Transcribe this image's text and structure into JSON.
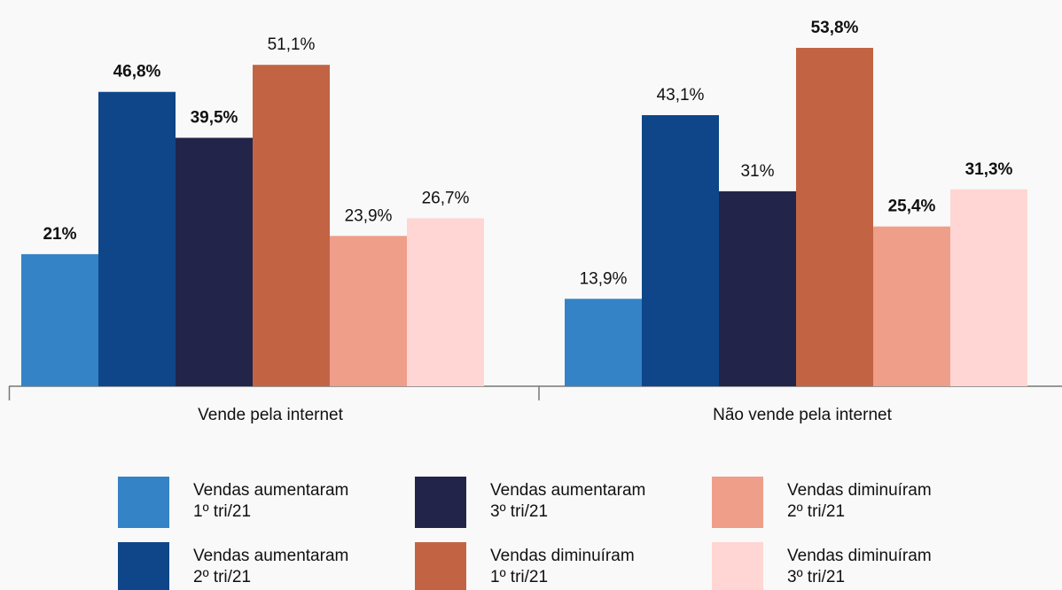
{
  "chart_data": {
    "type": "bar",
    "categories": [
      "Vende pela internet",
      "Não vende pela internet"
    ],
    "series": [
      {
        "name": "Vendas aumentaram 1º tri/21",
        "color": "#3483c6",
        "values": [
          21,
          13.9
        ],
        "value_labels": [
          "21%",
          "13,9%"
        ],
        "bold": [
          true,
          false
        ]
      },
      {
        "name": "Vendas aumentaram 2º tri/21",
        "color": "#0e4689",
        "values": [
          46.8,
          43.1
        ],
        "value_labels": [
          "46,8%",
          "43,1%"
        ],
        "bold": [
          true,
          false
        ]
      },
      {
        "name": "Vendas aumentaram 3º tri/21",
        "color": "#22244a",
        "values": [
          39.5,
          31
        ],
        "value_labels": [
          "39,5%",
          "31%"
        ],
        "bold": [
          true,
          false
        ]
      },
      {
        "name": "Vendas diminuíram 1º tri/21",
        "color": "#c26443",
        "values": [
          51.1,
          53.8
        ],
        "value_labels": [
          "51,1%",
          "53,8%"
        ],
        "bold": [
          false,
          true
        ]
      },
      {
        "name": "Vendas diminuíram 2º tri/21",
        "color": "#ef9e89",
        "values": [
          23.9,
          25.4
        ],
        "value_labels": [
          "23,9%",
          "25,4%"
        ],
        "bold": [
          false,
          true
        ]
      },
      {
        "name": "Vendas diminuíram 3º tri/21",
        "color": "#ffd6d3",
        "values": [
          26.7,
          31.3
        ],
        "value_labels": [
          "26,7%",
          "31,3%"
        ],
        "bold": [
          false,
          true
        ]
      }
    ]
  }
}
